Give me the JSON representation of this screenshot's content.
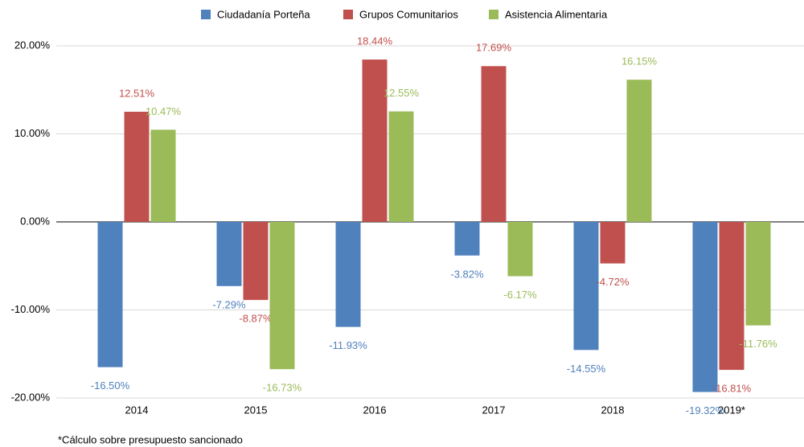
{
  "chart_data": {
    "type": "bar",
    "categories": [
      "2014",
      "2015",
      "2016",
      "2017",
      "2018",
      "2019*"
    ],
    "series": [
      {
        "name": "Ciudadanía Porteña",
        "color": "#4f81bd",
        "values": [
          -16.5,
          -7.29,
          -11.93,
          -3.82,
          -14.55,
          -19.32
        ],
        "value_labels": [
          "-16.50%",
          "-7.29%",
          "-11.93%",
          "-3.82%",
          "-14.55%",
          "-19.32%"
        ]
      },
      {
        "name": "Grupos Comunitarios",
        "color": "#c0504d",
        "values": [
          12.51,
          -8.87,
          18.44,
          17.69,
          -4.72,
          -16.81
        ],
        "value_labels": [
          "12.51%",
          "-8.87%",
          "18.44%",
          "17.69%",
          "-4.72%",
          "-16.81%"
        ]
      },
      {
        "name": "Asistencia Alimentaria",
        "color": "#9bbb59",
        "values": [
          10.47,
          -16.73,
          12.55,
          -6.17,
          16.15,
          -11.76
        ],
        "value_labels": [
          "10.47%",
          "-16.73%",
          "12.55%",
          "-6.17%",
          "16.15%",
          "-11.76%"
        ]
      }
    ],
    "ylim": [
      -20,
      20
    ],
    "yticks": [
      {
        "value": -20,
        "label": "-20.00%"
      },
      {
        "value": -10,
        "label": "-10.00%"
      },
      {
        "value": 0,
        "label": "0.00%"
      },
      {
        "value": 10,
        "label": "10.00%"
      },
      {
        "value": 20,
        "label": "20.00%"
      }
    ],
    "grid": true,
    "legend": "top",
    "footnote": "*Cálculo sobre presupuesto sancionado"
  }
}
